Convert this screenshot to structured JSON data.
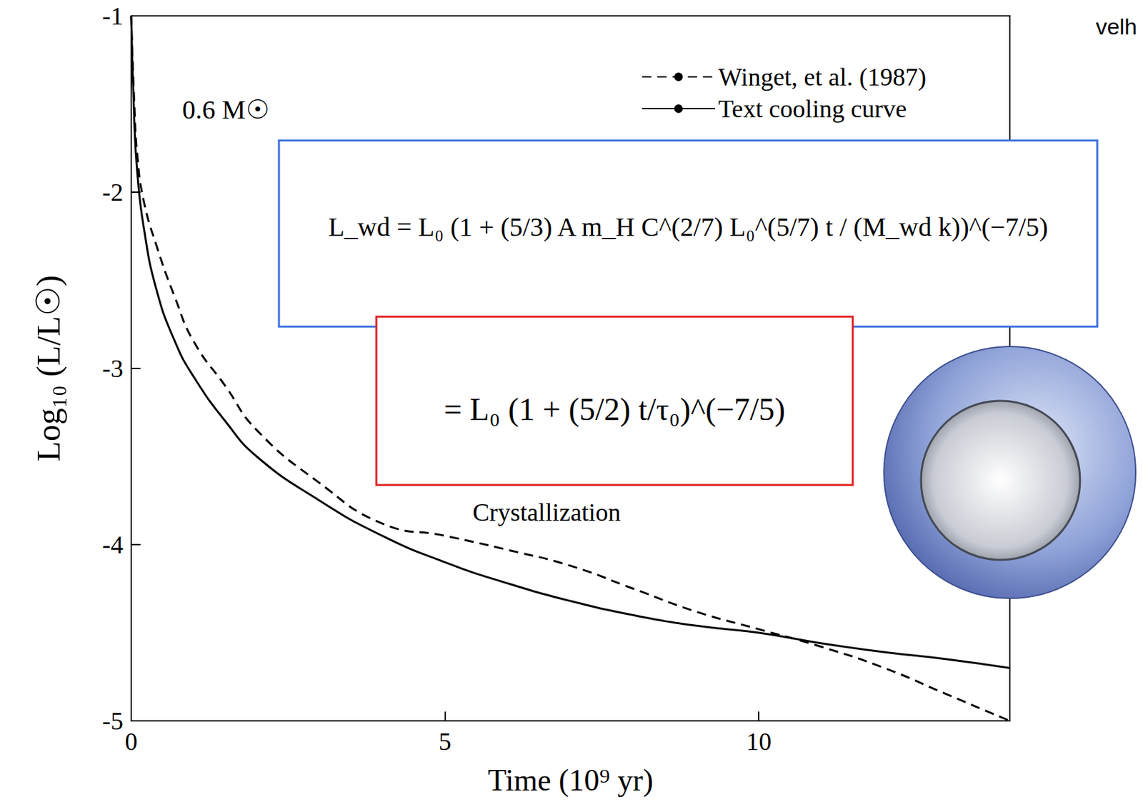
{
  "chart_data": {
    "type": "line",
    "x_label": "Time (10⁹ yr)",
    "y_label": "Log₁₀ (L/L☉)",
    "xlim": [
      0,
      14
    ],
    "xticks": [
      0,
      5,
      10
    ],
    "ylim": [
      -5,
      -1
    ],
    "yticks": [
      -5,
      -4,
      -3,
      -2,
      -1
    ],
    "grid": false,
    "legend": "upper right",
    "annotations": [
      "0.6 M☉",
      "Crystallization",
      "velh"
    ],
    "formulas": [
      "L_wd = L₀ (1 + (5/3) A m_H C^(2/7) L₀^(5/7) t / (M_wd k))^(−7/5)",
      "= L₀ (1 + (5/2) t/τ₀)^(−7/5)"
    ],
    "x": [
      0,
      0.05,
      0.1,
      0.2,
      0.4,
      0.7,
      1.0,
      1.5,
      2,
      3,
      4,
      5,
      6,
      7,
      8,
      9,
      10,
      11,
      12,
      13,
      14
    ],
    "series": [
      {
        "name": "Winget, et al. (1987)",
        "color": "#000000",
        "line_style": "dashed",
        "values": [
          -1,
          -1.5,
          -1.8,
          -2.05,
          -2.3,
          -2.6,
          -2.85,
          -3.1,
          -3.35,
          -3.65,
          -3.88,
          -3.95,
          -4.03,
          -4.12,
          -4.25,
          -4.38,
          -4.48,
          -4.58,
          -4.7,
          -4.85,
          -5.0
        ]
      },
      {
        "name": "Text cooling curve",
        "color": "#000000",
        "line_style": "solid",
        "values": [
          -1,
          -1.6,
          -1.9,
          -2.2,
          -2.55,
          -2.85,
          -3.05,
          -3.3,
          -3.5,
          -3.75,
          -3.95,
          -4.1,
          -4.22,
          -4.32,
          -4.4,
          -4.46,
          -4.5,
          -4.56,
          -4.61,
          -4.65,
          -4.7
        ]
      }
    ]
  }
}
